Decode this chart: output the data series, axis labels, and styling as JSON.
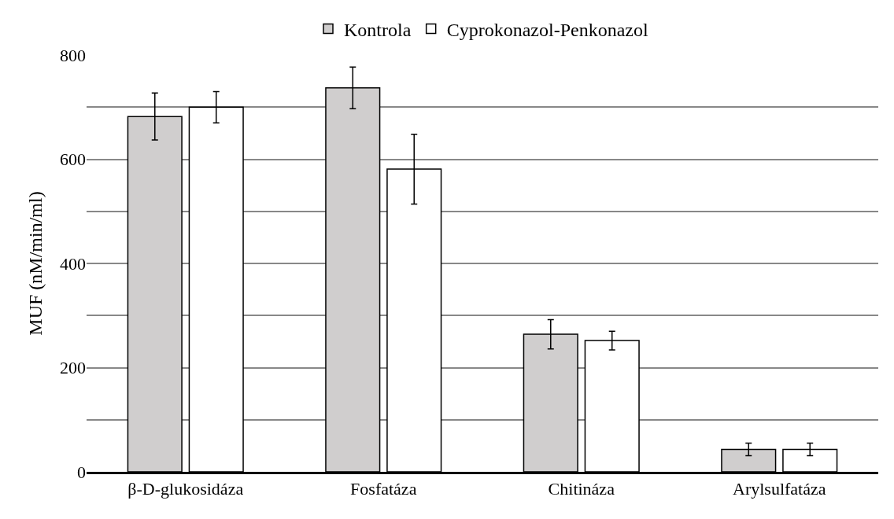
{
  "chart_data": {
    "type": "bar",
    "ylabel": "MUF (nM/min/ml)",
    "categories": [
      "β-D-glukosidáza",
      "Fosfatáza",
      "Chitináza",
      "Arylsulfatáza"
    ],
    "series": [
      {
        "name": "Kontrola",
        "color": "#d0cece",
        "values": [
          682,
          737,
          264,
          43
        ],
        "errors": [
          45,
          40,
          28,
          12
        ]
      },
      {
        "name": "Cyprokonazol-Penkonazol",
        "color": "#ffffff",
        "values": [
          700,
          581,
          252,
          43
        ],
        "errors": [
          30,
          67,
          18,
          12
        ]
      }
    ],
    "ylim": [
      0,
      800
    ],
    "yticks": [
      0,
      {
        "value": 100,
        "label": null
      },
      200,
      {
        "value": 300,
        "label": null
      },
      400,
      {
        "value": 500,
        "label": null
      },
      600,
      {
        "value": 700,
        "label": null
      },
      800
    ],
    "grid": "y",
    "legend": "top"
  }
}
